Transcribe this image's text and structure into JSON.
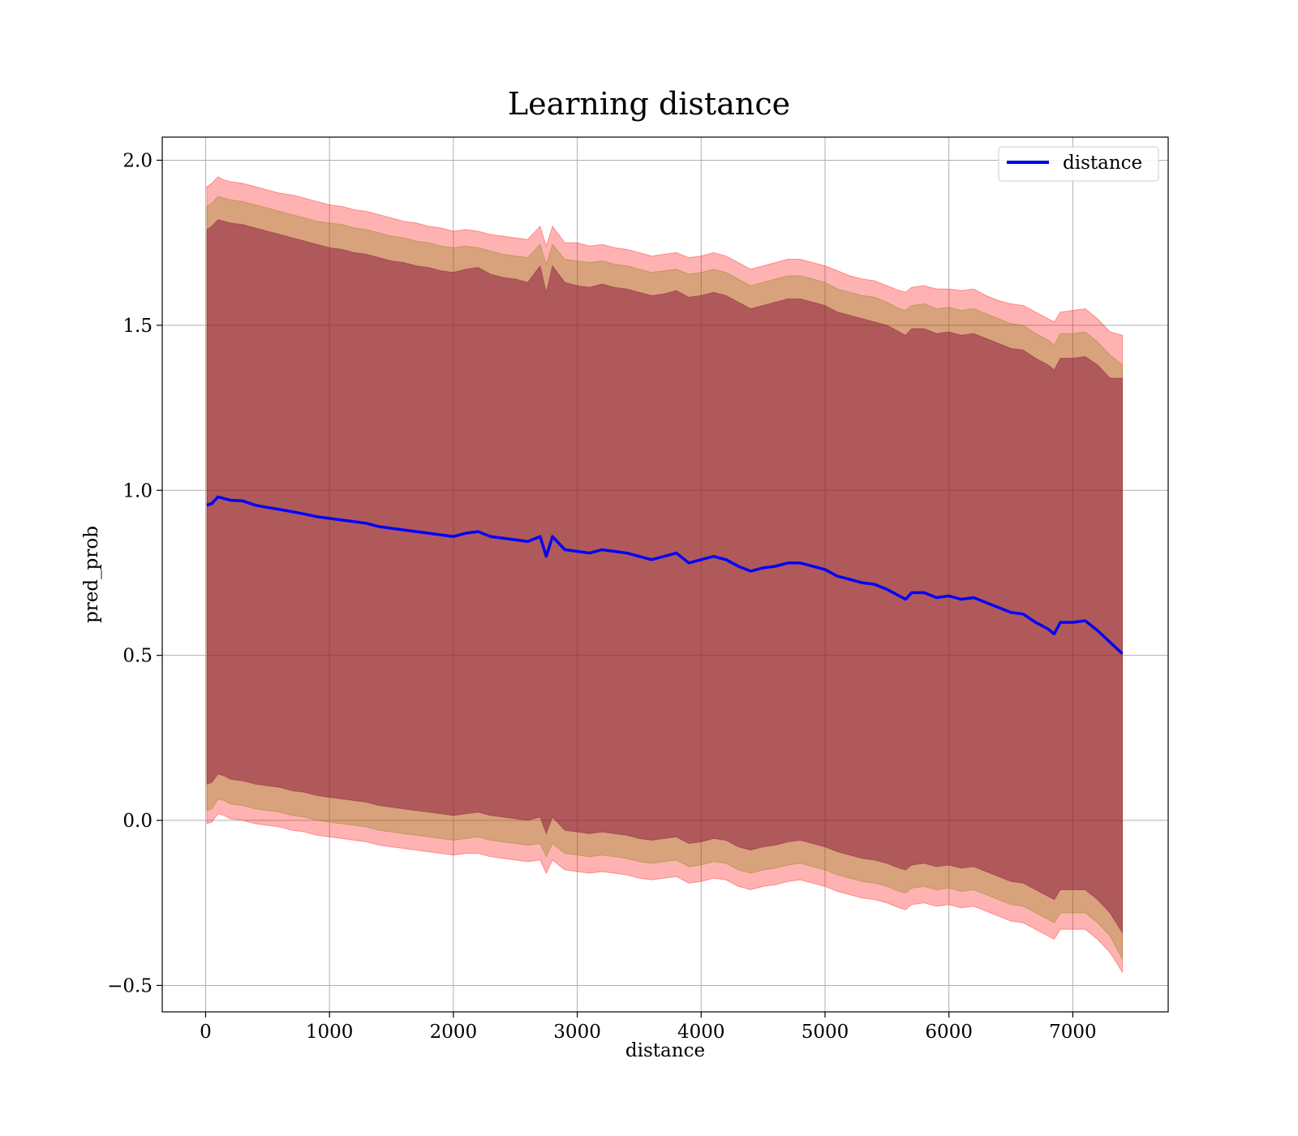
{
  "chart_data": {
    "type": "line",
    "title": "Learning distance",
    "xlabel": "distance",
    "ylabel": "pred_prob",
    "xlim": [
      -350,
      7770
    ],
    "ylim": [
      -0.58,
      2.07
    ],
    "grid": true,
    "legend_position": "top-right",
    "x_ticks": [
      0,
      1000,
      2000,
      3000,
      4000,
      5000,
      6000,
      7000
    ],
    "x_tick_labels": [
      "0",
      "1000",
      "2000",
      "3000",
      "4000",
      "5000",
      "6000",
      "7000"
    ],
    "y_ticks": [
      -0.5,
      0.0,
      0.5,
      1.0,
      1.5,
      2.0
    ],
    "y_tick_labels": [
      "−0.5",
      "0.0",
      "0.5",
      "1.0",
      "1.5",
      "2.0"
    ],
    "series": [
      {
        "name": "distance",
        "color": "#0000ff",
        "x": [
          10,
          50,
          100,
          150,
          200,
          300,
          400,
          500,
          600,
          700,
          800,
          900,
          1000,
          1100,
          1200,
          1300,
          1400,
          1500,
          1600,
          1700,
          1800,
          1900,
          2000,
          2100,
          2200,
          2300,
          2400,
          2500,
          2600,
          2700,
          2750,
          2800,
          2900,
          3000,
          3100,
          3200,
          3300,
          3400,
          3500,
          3600,
          3700,
          3800,
          3900,
          4000,
          4100,
          4200,
          4300,
          4400,
          4500,
          4600,
          4700,
          4800,
          4900,
          5000,
          5100,
          5200,
          5300,
          5400,
          5500,
          5600,
          5650,
          5700,
          5800,
          5900,
          6000,
          6100,
          6200,
          6300,
          6400,
          6500,
          6600,
          6700,
          6800,
          6850,
          6900,
          7000,
          7100,
          7200,
          7300,
          7400
        ],
        "y": [
          0.955,
          0.96,
          0.98,
          0.975,
          0.97,
          0.968,
          0.955,
          0.948,
          0.942,
          0.935,
          0.928,
          0.92,
          0.915,
          0.91,
          0.905,
          0.9,
          0.89,
          0.885,
          0.88,
          0.875,
          0.87,
          0.865,
          0.86,
          0.87,
          0.875,
          0.86,
          0.855,
          0.85,
          0.845,
          0.86,
          0.8,
          0.86,
          0.82,
          0.815,
          0.81,
          0.82,
          0.815,
          0.81,
          0.8,
          0.79,
          0.8,
          0.81,
          0.78,
          0.79,
          0.8,
          0.79,
          0.77,
          0.755,
          0.765,
          0.77,
          0.78,
          0.78,
          0.77,
          0.76,
          0.74,
          0.73,
          0.72,
          0.715,
          0.7,
          0.68,
          0.67,
          0.69,
          0.69,
          0.675,
          0.68,
          0.67,
          0.675,
          0.66,
          0.645,
          0.63,
          0.625,
          0.6,
          0.58,
          0.565,
          0.6,
          0.6,
          0.605,
          0.575,
          0.54,
          0.505
        ]
      }
    ],
    "bands": [
      {
        "color": "#ff0000",
        "alpha": 0.3,
        "upper": [
          1.92,
          1.93,
          1.95,
          1.94,
          1.935,
          1.93,
          1.92,
          1.91,
          1.9,
          1.895,
          1.885,
          1.875,
          1.865,
          1.86,
          1.85,
          1.845,
          1.835,
          1.825,
          1.815,
          1.81,
          1.8,
          1.795,
          1.785,
          1.79,
          1.785,
          1.775,
          1.77,
          1.765,
          1.76,
          1.8,
          1.74,
          1.8,
          1.75,
          1.75,
          1.74,
          1.745,
          1.735,
          1.73,
          1.72,
          1.71,
          1.715,
          1.72,
          1.705,
          1.71,
          1.72,
          1.71,
          1.69,
          1.67,
          1.68,
          1.69,
          1.7,
          1.7,
          1.69,
          1.68,
          1.665,
          1.65,
          1.64,
          1.635,
          1.62,
          1.605,
          1.6,
          1.615,
          1.62,
          1.61,
          1.61,
          1.605,
          1.61,
          1.59,
          1.575,
          1.565,
          1.56,
          1.54,
          1.52,
          1.51,
          1.54,
          1.545,
          1.55,
          1.52,
          1.48,
          1.47
        ],
        "lower": [
          -0.01,
          -0.005,
          0.02,
          0.015,
          0.005,
          0.0,
          -0.01,
          -0.015,
          -0.02,
          -0.03,
          -0.035,
          -0.045,
          -0.05,
          -0.055,
          -0.06,
          -0.065,
          -0.075,
          -0.08,
          -0.085,
          -0.09,
          -0.095,
          -0.1,
          -0.105,
          -0.1,
          -0.1,
          -0.11,
          -0.115,
          -0.12,
          -0.125,
          -0.12,
          -0.16,
          -0.12,
          -0.15,
          -0.155,
          -0.16,
          -0.155,
          -0.16,
          -0.165,
          -0.175,
          -0.18,
          -0.175,
          -0.17,
          -0.19,
          -0.185,
          -0.175,
          -0.18,
          -0.2,
          -0.21,
          -0.2,
          -0.195,
          -0.185,
          -0.18,
          -0.19,
          -0.2,
          -0.215,
          -0.225,
          -0.235,
          -0.24,
          -0.25,
          -0.265,
          -0.27,
          -0.255,
          -0.25,
          -0.26,
          -0.255,
          -0.265,
          -0.26,
          -0.275,
          -0.29,
          -0.305,
          -0.31,
          -0.33,
          -0.35,
          -0.36,
          -0.33,
          -0.33,
          -0.33,
          -0.36,
          -0.4,
          -0.46
        ]
      },
      {
        "color": "#7f7f00",
        "alpha": 0.3,
        "upper": [
          1.86,
          1.87,
          1.89,
          1.885,
          1.88,
          1.875,
          1.865,
          1.855,
          1.845,
          1.835,
          1.825,
          1.815,
          1.81,
          1.805,
          1.795,
          1.79,
          1.78,
          1.77,
          1.765,
          1.755,
          1.75,
          1.74,
          1.735,
          1.74,
          1.735,
          1.725,
          1.715,
          1.71,
          1.705,
          1.745,
          1.685,
          1.745,
          1.7,
          1.695,
          1.69,
          1.695,
          1.685,
          1.68,
          1.67,
          1.66,
          1.665,
          1.67,
          1.655,
          1.66,
          1.67,
          1.66,
          1.64,
          1.62,
          1.63,
          1.64,
          1.65,
          1.65,
          1.64,
          1.63,
          1.61,
          1.6,
          1.59,
          1.585,
          1.57,
          1.55,
          1.545,
          1.56,
          1.565,
          1.55,
          1.555,
          1.545,
          1.55,
          1.535,
          1.52,
          1.505,
          1.5,
          1.475,
          1.455,
          1.44,
          1.475,
          1.475,
          1.48,
          1.45,
          1.41,
          1.38
        ],
        "lower": [
          0.03,
          0.035,
          0.065,
          0.06,
          0.05,
          0.045,
          0.035,
          0.03,
          0.025,
          0.015,
          0.01,
          0.0,
          -0.005,
          -0.01,
          -0.015,
          -0.02,
          -0.03,
          -0.035,
          -0.04,
          -0.045,
          -0.05,
          -0.055,
          -0.06,
          -0.055,
          -0.05,
          -0.06,
          -0.065,
          -0.07,
          -0.075,
          -0.07,
          -0.11,
          -0.07,
          -0.1,
          -0.105,
          -0.11,
          -0.105,
          -0.11,
          -0.115,
          -0.125,
          -0.13,
          -0.125,
          -0.12,
          -0.14,
          -0.135,
          -0.125,
          -0.13,
          -0.15,
          -0.16,
          -0.15,
          -0.145,
          -0.135,
          -0.13,
          -0.14,
          -0.15,
          -0.165,
          -0.175,
          -0.185,
          -0.19,
          -0.2,
          -0.215,
          -0.22,
          -0.205,
          -0.2,
          -0.21,
          -0.205,
          -0.215,
          -0.21,
          -0.225,
          -0.24,
          -0.255,
          -0.26,
          -0.28,
          -0.3,
          -0.31,
          -0.28,
          -0.28,
          -0.28,
          -0.31,
          -0.35,
          -0.42
        ]
      },
      {
        "color": "#800033",
        "alpha": 0.45,
        "upper": [
          1.79,
          1.8,
          1.82,
          1.815,
          1.81,
          1.805,
          1.795,
          1.785,
          1.775,
          1.765,
          1.755,
          1.745,
          1.735,
          1.73,
          1.72,
          1.715,
          1.705,
          1.695,
          1.69,
          1.68,
          1.675,
          1.665,
          1.66,
          1.67,
          1.675,
          1.655,
          1.645,
          1.64,
          1.63,
          1.68,
          1.6,
          1.68,
          1.63,
          1.62,
          1.615,
          1.625,
          1.615,
          1.61,
          1.6,
          1.59,
          1.595,
          1.605,
          1.585,
          1.59,
          1.6,
          1.59,
          1.57,
          1.55,
          1.56,
          1.57,
          1.58,
          1.58,
          1.57,
          1.56,
          1.54,
          1.53,
          1.52,
          1.51,
          1.5,
          1.48,
          1.47,
          1.49,
          1.49,
          1.475,
          1.48,
          1.47,
          1.475,
          1.46,
          1.445,
          1.43,
          1.425,
          1.4,
          1.38,
          1.365,
          1.4,
          1.4,
          1.405,
          1.38,
          1.34,
          1.34
        ],
        "lower": [
          0.11,
          0.115,
          0.14,
          0.135,
          0.125,
          0.12,
          0.11,
          0.105,
          0.1,
          0.09,
          0.085,
          0.075,
          0.07,
          0.065,
          0.06,
          0.055,
          0.045,
          0.04,
          0.035,
          0.03,
          0.025,
          0.02,
          0.015,
          0.02,
          0.025,
          0.015,
          0.01,
          0.005,
          0.0,
          0.01,
          -0.04,
          0.01,
          -0.03,
          -0.035,
          -0.04,
          -0.035,
          -0.04,
          -0.045,
          -0.055,
          -0.06,
          -0.055,
          -0.05,
          -0.07,
          -0.065,
          -0.055,
          -0.06,
          -0.08,
          -0.09,
          -0.08,
          -0.075,
          -0.065,
          -0.06,
          -0.07,
          -0.08,
          -0.095,
          -0.105,
          -0.115,
          -0.12,
          -0.13,
          -0.145,
          -0.15,
          -0.135,
          -0.13,
          -0.14,
          -0.135,
          -0.145,
          -0.14,
          -0.155,
          -0.17,
          -0.185,
          -0.19,
          -0.21,
          -0.23,
          -0.24,
          -0.21,
          -0.21,
          -0.21,
          -0.24,
          -0.28,
          -0.34
        ]
      }
    ]
  }
}
